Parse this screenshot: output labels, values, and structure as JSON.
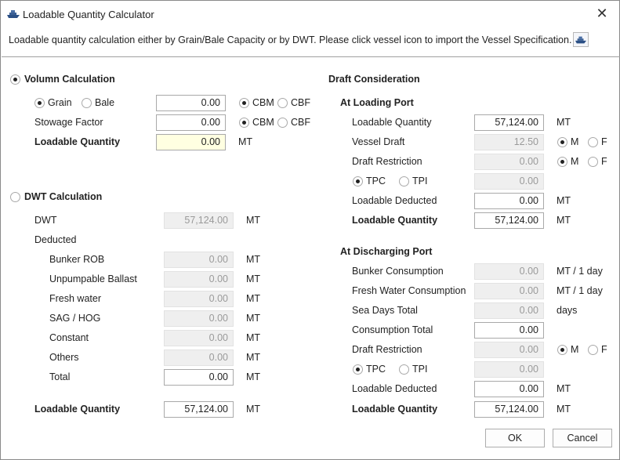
{
  "window": {
    "title": "Loadable Quantity Calculator",
    "close_glyph": "✕",
    "icon": "ship-icon"
  },
  "description": "Loadable quantity calculation either by Grain/Bale Capacity or by DWT. Please click vessel icon to import the Vessel Specification.",
  "volume": {
    "title": "Volumn Calculation",
    "selected": true,
    "grain_label": "Grain",
    "bale_label": "Bale",
    "grain_selected": true,
    "capacity_value": "0.00",
    "capacity_unit_cbm": "CBM",
    "capacity_unit_cbf": "CBF",
    "stowage_label": "Stowage Factor",
    "stowage_value": "0.00",
    "stowage_unit_cbm": "CBM",
    "stowage_unit_cbf": "CBF",
    "loadable_label": "Loadable Quantity",
    "loadable_value": "0.00",
    "loadable_unit": "MT"
  },
  "dwt": {
    "title": "DWT Calculation",
    "selected": false,
    "dwt_label": "DWT",
    "dwt_value": "57,124.00",
    "dwt_unit": "MT",
    "deducted_label": "Deducted",
    "items": [
      {
        "label": "Bunker ROB",
        "value": "0.00",
        "unit": "MT"
      },
      {
        "label": "Unpumpable Ballast",
        "value": "0.00",
        "unit": "MT"
      },
      {
        "label": "Fresh water",
        "value": "0.00",
        "unit": "MT"
      },
      {
        "label": "SAG / HOG",
        "value": "0.00",
        "unit": "MT"
      },
      {
        "label": "Constant",
        "value": "0.00",
        "unit": "MT"
      },
      {
        "label": "Others",
        "value": "0.00",
        "unit": "MT"
      }
    ],
    "total_label": "Total",
    "total_value": "0.00",
    "total_unit": "MT",
    "loadable_label": "Loadable Quantity",
    "loadable_value": "57,124.00",
    "loadable_unit": "MT"
  },
  "draft": {
    "title": "Draft Consideration",
    "loading": {
      "title": "At Loading Port",
      "loadable_label": "Loadable Quantity",
      "loadable_value": "57,124.00",
      "loadable_unit": "MT",
      "vessel_draft_label": "Vessel Draft",
      "vessel_draft_value": "12.50",
      "draft_restriction_label": "Draft Restriction",
      "draft_restriction_value": "0.00",
      "unit_m": "M",
      "unit_f": "F",
      "tpc_label": "TPC",
      "tpi_label": "TPI",
      "tpc_value": "0.00",
      "deducted_label": "Loadable Deducted",
      "deducted_value": "0.00",
      "deducted_unit": "MT",
      "result_label": "Loadable Quantity",
      "result_value": "57,124.00",
      "result_unit": "MT"
    },
    "discharging": {
      "title": "At Discharging Port",
      "bunker_label": "Bunker Consumption",
      "bunker_value": "0.00",
      "bunker_unit": "MT / 1 day",
      "fresh_label": "Fresh Water Consumption",
      "fresh_value": "0.00",
      "fresh_unit": "MT / 1 day",
      "sea_label": "Sea Days Total",
      "sea_value": "0.00",
      "sea_unit": "days",
      "consumption_label": "Consumption Total",
      "consumption_value": "0.00",
      "draft_restriction_label": "Draft Restriction",
      "draft_restriction_value": "0.00",
      "unit_m": "M",
      "unit_f": "F",
      "tpc_label": "TPC",
      "tpi_label": "TPI",
      "tpc_value": "0.00",
      "deducted_label": "Loadable Deducted",
      "deducted_value": "0.00",
      "deducted_unit": "MT",
      "result_label": "Loadable Quantity",
      "result_value": "57,124.00",
      "result_unit": "MT"
    }
  },
  "buttons": {
    "ok": "OK",
    "cancel": "Cancel"
  },
  "colors": {
    "highlight_field": "#ffffe1",
    "readonly_field": "#efefef",
    "border": "#a9a9a9"
  }
}
